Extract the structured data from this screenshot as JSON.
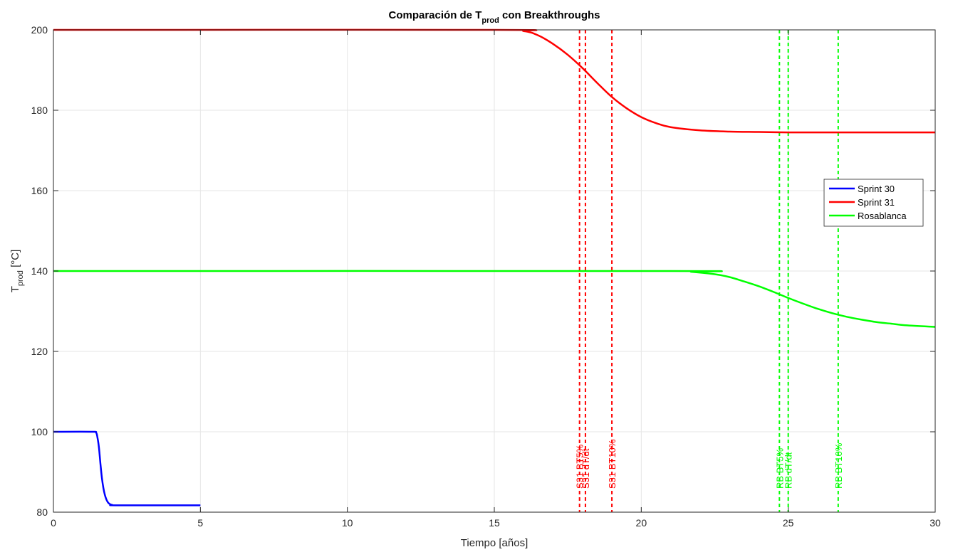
{
  "chart_data": {
    "type": "line",
    "title": {
      "main": "Comparación de T",
      "sub": "prod",
      "rest": " con Breakthroughs"
    },
    "xlabel": "Tiempo [años]",
    "ylabel": {
      "main": "T",
      "sub": "prod",
      "rest": " [°C]"
    },
    "xlim": [
      0,
      30
    ],
    "ylim": [
      80,
      200
    ],
    "xticks": [
      0,
      5,
      10,
      15,
      20,
      25,
      30
    ],
    "yticks": [
      80,
      100,
      120,
      140,
      160,
      180,
      200
    ],
    "grid": true,
    "legend_position": "right",
    "series": [
      {
        "name": "Sprint 30",
        "color": "#0000ff",
        "x": [
          0,
          1.3,
          1.45,
          1.5,
          1.55,
          1.6,
          1.65,
          1.7,
          1.75,
          1.8,
          1.85,
          1.9,
          2.0,
          2.2,
          5.0
        ],
        "y": [
          100,
          100,
          99.8,
          98.5,
          96,
          92,
          88.5,
          86,
          84.3,
          83.2,
          82.5,
          82.1,
          81.8,
          81.7,
          81.7
        ]
      },
      {
        "name": "Sprint 31",
        "color": "#ff0000",
        "x": [
          0,
          15,
          16,
          16.5,
          17,
          17.5,
          18,
          18.5,
          19,
          19.5,
          20,
          20.5,
          21,
          22,
          23,
          24,
          25,
          26,
          30
        ],
        "y": [
          200,
          200,
          199.7,
          198.6,
          196.5,
          193.8,
          190.5,
          186.8,
          183.3,
          180.5,
          178.3,
          176.8,
          175.8,
          175,
          174.7,
          174.6,
          174.5,
          174.5,
          174.5
        ]
      },
      {
        "name": "Rosablanca",
        "color": "#00ff00",
        "x": [
          0,
          21,
          21.7,
          22.5,
          23,
          23.5,
          24,
          24.5,
          25,
          25.5,
          26,
          26.5,
          27,
          27.5,
          28,
          28.5,
          29,
          30
        ],
        "y": [
          140,
          140,
          139.8,
          139.2,
          138.5,
          137.4,
          136.2,
          134.8,
          133.3,
          131.9,
          130.6,
          129.5,
          128.6,
          127.9,
          127.3,
          126.9,
          126.5,
          126.1
        ]
      }
    ],
    "vlines": [
      {
        "x": 17.9,
        "label": "S31 BT5%",
        "color": "#ff0000"
      },
      {
        "x": 18.1,
        "label": "S31 dT/dt",
        "color": "#ff0000"
      },
      {
        "x": 19.0,
        "label": "S31 BT10%",
        "color": "#ff0000"
      },
      {
        "x": 24.7,
        "label": "RB BT5%",
        "color": "#00ff00"
      },
      {
        "x": 25.0,
        "label": "RB dT/dt",
        "color": "#00ff00"
      },
      {
        "x": 26.7,
        "label": "RB BT10%",
        "color": "#00ff00"
      }
    ]
  }
}
